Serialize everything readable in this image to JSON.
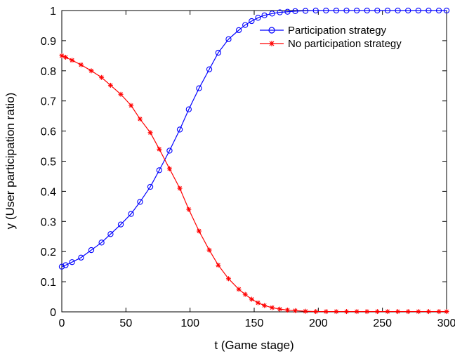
{
  "chart_data": {
    "type": "line",
    "xlabel": "t (Game stage)",
    "ylabel": "y (User participation ratio)",
    "xlim": [
      0,
      300
    ],
    "ylim": [
      0,
      1
    ],
    "xticks": [
      "0",
      "50",
      "100",
      "150",
      "200",
      "250",
      "300"
    ],
    "yticks": [
      "0",
      "0.1",
      "0.2",
      "0.3",
      "0.4",
      "0.5",
      "0.6",
      "0.7",
      "0.8",
      "0.9",
      "1"
    ],
    "grid": false,
    "legend_position": "top-right",
    "x": [
      0,
      3,
      8,
      15,
      23,
      31,
      38,
      46,
      54,
      61,
      69,
      76,
      84,
      92,
      99,
      107,
      115,
      122,
      130,
      138,
      143,
      148,
      153,
      158,
      164,
      170,
      176,
      182,
      190,
      198,
      206,
      214,
      222,
      230,
      238,
      246,
      254,
      262,
      270,
      278,
      286,
      294,
      300
    ],
    "series": [
      {
        "name": "Participation strategy",
        "color": "#0000ff",
        "marker": "circle",
        "values": [
          0.15,
          0.155,
          0.165,
          0.18,
          0.205,
          0.23,
          0.258,
          0.29,
          0.325,
          0.365,
          0.415,
          0.47,
          0.535,
          0.605,
          0.672,
          0.742,
          0.805,
          0.86,
          0.905,
          0.935,
          0.952,
          0.965,
          0.976,
          0.984,
          0.99,
          0.994,
          0.996,
          0.998,
          0.999,
          1,
          1,
          1,
          1,
          1,
          1,
          1,
          1,
          1,
          1,
          1,
          1,
          1,
          1
        ]
      },
      {
        "name": "No participation strategy",
        "color": "#ff0000",
        "marker": "star",
        "values": [
          0.85,
          0.845,
          0.835,
          0.82,
          0.8,
          0.778,
          0.752,
          0.722,
          0.685,
          0.64,
          0.595,
          0.54,
          0.475,
          0.41,
          0.34,
          0.268,
          0.205,
          0.155,
          0.11,
          0.075,
          0.058,
          0.042,
          0.03,
          0.021,
          0.014,
          0.009,
          0.006,
          0.004,
          0.002,
          0.001,
          0.001,
          0.001,
          0.001,
          0.001,
          0.001,
          0.001,
          0.001,
          0.001,
          0.001,
          0.001,
          0.001,
          0.001,
          0.001
        ]
      }
    ]
  }
}
